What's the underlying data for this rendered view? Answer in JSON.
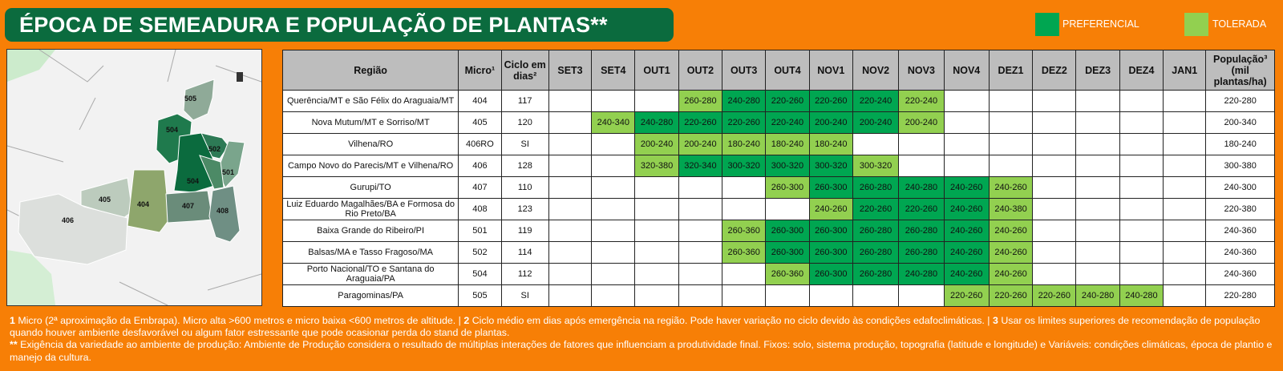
{
  "title": "ÉPOCA DE SEMEADURA E POPULAÇÃO DE PLANTAS**",
  "legend": {
    "preferencial": {
      "label": "PREFERENCIAL",
      "color": "#00a651"
    },
    "tolerada": {
      "label": "TOLERADA",
      "color": "#92d050"
    }
  },
  "map": {
    "labels": [
      "505",
      "504",
      "502",
      "501",
      "504",
      "405",
      "404",
      "407",
      "408",
      "406"
    ]
  },
  "table": {
    "headers": {
      "regiao": "Região",
      "micro": "Micro¹",
      "ciclo_l1": "Ciclo em",
      "ciclo_l2": "dias²",
      "periods": [
        "SET3",
        "SET4",
        "OUT1",
        "OUT2",
        "OUT3",
        "OUT4",
        "NOV1",
        "NOV2",
        "NOV3",
        "NOV4",
        "DEZ1",
        "DEZ2",
        "DEZ3",
        "DEZ4",
        "JAN1"
      ],
      "pop_l1": "População³",
      "pop_l2": "(mil",
      "pop_l3": "plantas/ha)"
    },
    "rows": [
      {
        "regiao": "Querência/MT e São Félix do Araguaia/MT",
        "micro": "404",
        "ciclo": "117",
        "cells": [
          null,
          null,
          null,
          [
            "tol",
            "260-280"
          ],
          [
            "pref",
            "240-280"
          ],
          [
            "pref",
            "220-260"
          ],
          [
            "pref",
            "220-260"
          ],
          [
            "pref",
            "220-240"
          ],
          [
            "tol",
            "220-240"
          ],
          null,
          null,
          null,
          null,
          null,
          null
        ],
        "pop": "220-280"
      },
      {
        "regiao": "Nova Mutum/MT e Sorriso/MT",
        "micro": "405",
        "ciclo": "120",
        "cells": [
          null,
          [
            "tol",
            "240-340"
          ],
          [
            "pref",
            "240-280"
          ],
          [
            "pref",
            "220-260"
          ],
          [
            "pref",
            "220-260"
          ],
          [
            "pref",
            "220-240"
          ],
          [
            "pref",
            "200-240"
          ],
          [
            "pref",
            "200-240"
          ],
          [
            "tol",
            "200-240"
          ],
          null,
          null,
          null,
          null,
          null,
          null
        ],
        "pop": "200-340"
      },
      {
        "regiao": "Vilhena/RO",
        "micro": "406RO",
        "ciclo": "SI",
        "cells": [
          null,
          null,
          [
            "tol",
            "200-240"
          ],
          [
            "tol",
            "200-240"
          ],
          [
            "tol",
            "180-240"
          ],
          [
            "tol",
            "180-240"
          ],
          [
            "tol",
            "180-240"
          ],
          null,
          null,
          null,
          null,
          null,
          null,
          null,
          null
        ],
        "pop": "180-240"
      },
      {
        "regiao": "Campo Novo do Parecis/MT e Vilhena/RO",
        "micro": "406",
        "ciclo": "128",
        "cells": [
          null,
          null,
          [
            "tol",
            "320-380"
          ],
          [
            "pref",
            "320-340"
          ],
          [
            "pref",
            "300-320"
          ],
          [
            "pref",
            "300-320"
          ],
          [
            "pref",
            "300-320"
          ],
          [
            "tol",
            "300-320"
          ],
          null,
          null,
          null,
          null,
          null,
          null,
          null
        ],
        "pop": "300-380"
      },
      {
        "regiao": "Gurupi/TO",
        "micro": "407",
        "ciclo": "110",
        "cells": [
          null,
          null,
          null,
          null,
          null,
          [
            "tol",
            "260-300"
          ],
          [
            "pref",
            "260-300"
          ],
          [
            "pref",
            "260-280"
          ],
          [
            "pref",
            "240-280"
          ],
          [
            "pref",
            "240-260"
          ],
          [
            "tol",
            "240-260"
          ],
          null,
          null,
          null,
          null
        ],
        "pop": "240-300"
      },
      {
        "regiao": "Luiz Eduardo Magalhães/BA e Formosa do Rio Preto/BA",
        "micro": "408",
        "ciclo": "123",
        "cells": [
          null,
          null,
          null,
          null,
          null,
          null,
          [
            "tol",
            "240-260"
          ],
          [
            "pref",
            "220-260"
          ],
          [
            "pref",
            "220-260"
          ],
          [
            "pref",
            "240-260"
          ],
          [
            "tol",
            "240-380"
          ],
          null,
          null,
          null,
          null
        ],
        "pop": "220-380"
      },
      {
        "regiao": "Baixa Grande do Ribeiro/PI",
        "micro": "501",
        "ciclo": "119",
        "cells": [
          null,
          null,
          null,
          null,
          [
            "tol",
            "260-360"
          ],
          [
            "pref",
            "260-300"
          ],
          [
            "pref",
            "260-300"
          ],
          [
            "pref",
            "260-280"
          ],
          [
            "pref",
            "260-280"
          ],
          [
            "pref",
            "240-260"
          ],
          [
            "tol",
            "240-260"
          ],
          null,
          null,
          null,
          null
        ],
        "pop": "240-360"
      },
      {
        "regiao": "Balsas/MA e Tasso Fragoso/MA",
        "micro": "502",
        "ciclo": "114",
        "cells": [
          null,
          null,
          null,
          null,
          [
            "tol",
            "260-360"
          ],
          [
            "pref",
            "260-300"
          ],
          [
            "pref",
            "260-300"
          ],
          [
            "pref",
            "260-280"
          ],
          [
            "pref",
            "260-280"
          ],
          [
            "pref",
            "240-260"
          ],
          [
            "tol",
            "240-260"
          ],
          null,
          null,
          null,
          null
        ],
        "pop": "240-360"
      },
      {
        "regiao": "Porto Nacional/TO e Santana do Araguaia/PA",
        "micro": "504",
        "ciclo": "112",
        "cells": [
          null,
          null,
          null,
          null,
          null,
          [
            "tol",
            "260-360"
          ],
          [
            "pref",
            "260-300"
          ],
          [
            "pref",
            "260-280"
          ],
          [
            "pref",
            "240-280"
          ],
          [
            "pref",
            "240-260"
          ],
          [
            "tol",
            "240-260"
          ],
          null,
          null,
          null,
          null
        ],
        "pop": "240-360"
      },
      {
        "regiao": "Paragominas/PA",
        "micro": "505",
        "ciclo": "SI",
        "cells": [
          null,
          null,
          null,
          null,
          null,
          null,
          null,
          null,
          null,
          [
            "tol",
            "220-260"
          ],
          [
            "tol",
            "220-260"
          ],
          [
            "tol",
            "220-260"
          ],
          [
            "tol",
            "240-280"
          ],
          [
            "tol",
            "240-280"
          ],
          null
        ],
        "pop": "220-280"
      }
    ]
  },
  "footnote": {
    "n1": "1",
    "t1": " Micro (2ª aproximação da Embrapa). Micro alta >600 metros e micro baixa <600 metros de altitude. | ",
    "n2": "2",
    "t2": " Ciclo médio em dias após emergência na região. Pode haver variação no ciclo devido às condições edafoclimáticas. | ",
    "n3": "3",
    "t3": " Usar os limites superiores de recomendação de população quando houver ambiente desfavorável ou algum fator estressante que pode ocasionar perda do stand de plantas.",
    "n4": "**",
    "t4": " Exigência da variedade ao ambiente de produção: Ambiente de Produção considera o resultado de múltiplas interações de fatores que influenciam a produtividade final. Fixos: solo, sistema produção, topografia (latitude e longitude) e Variáveis: condições climáticas, época de plantio e manejo da cultura."
  }
}
